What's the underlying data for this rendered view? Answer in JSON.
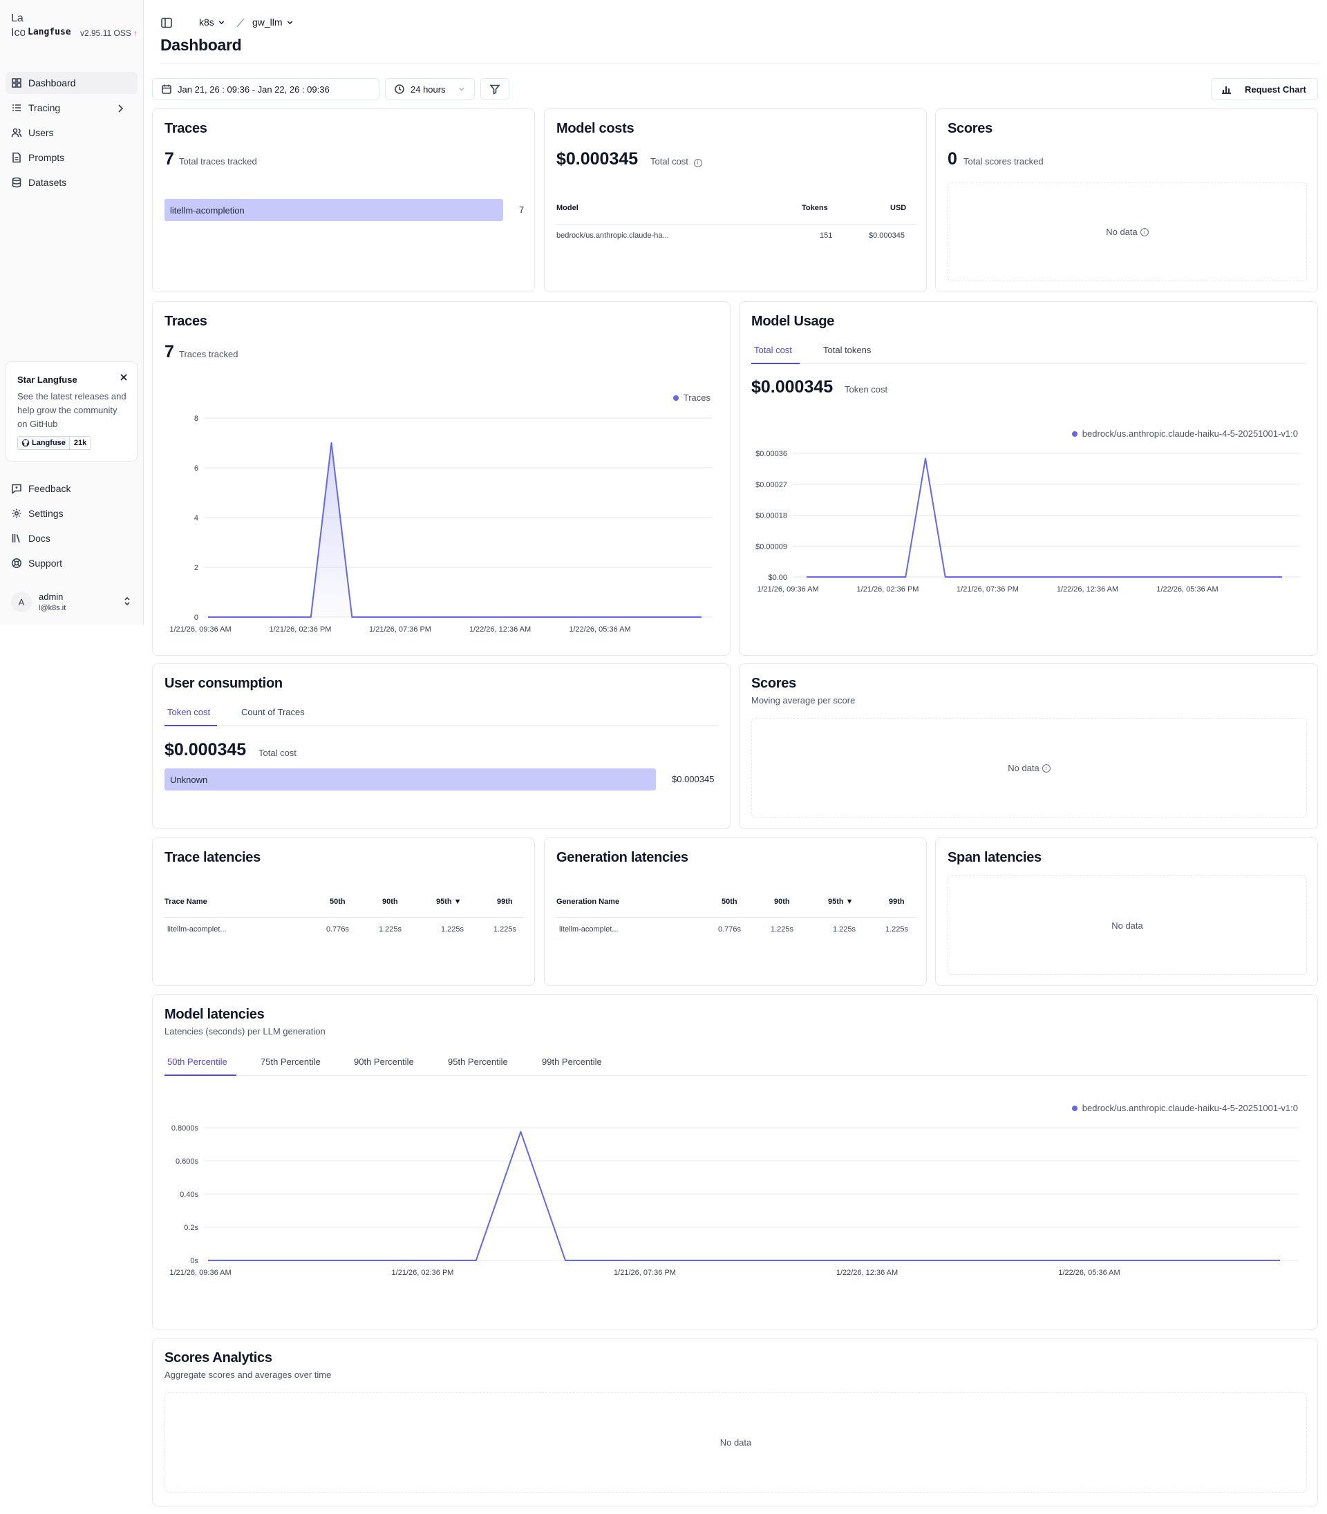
{
  "sidebar": {
    "logo_alt": "La Ico",
    "brand": "Langfuse",
    "version": "v2.95.11 OSS",
    "version_arrow": "↑",
    "nav": [
      {
        "label": "Dashboard"
      },
      {
        "label": "Tracing"
      },
      {
        "label": "Users"
      },
      {
        "label": "Prompts"
      },
      {
        "label": "Datasets"
      }
    ],
    "star": {
      "title": "Star Langfuse",
      "description": "See the latest releases and help grow the community on GitHub",
      "badge_label": "Langfuse",
      "badge_count": "21k"
    },
    "bottom_nav": [
      {
        "label": "Feedback"
      },
      {
        "label": "Settings"
      },
      {
        "label": "Docs"
      },
      {
        "label": "Support"
      }
    ],
    "user": {
      "initial": "A",
      "name": "admin",
      "email": "l@k8s.it"
    }
  },
  "header": {
    "breadcrumb": [
      "k8s",
      "gw_llm"
    ],
    "title": "Dashboard",
    "date_range": "Jan 21, 26 : 09:36 - Jan 22, 26 : 09:36",
    "interval": "24 hours",
    "request_chart": "Request Chart"
  },
  "traces_card": {
    "title": "Traces",
    "count": "7",
    "subtitle": "Total traces tracked",
    "rows": [
      {
        "name": "litellm-acompletion",
        "value": "7"
      }
    ]
  },
  "model_costs": {
    "title": "Model costs",
    "total": "$0.000345",
    "subtitle": "Total cost",
    "columns": [
      "Model",
      "Tokens",
      "USD"
    ],
    "rows": [
      {
        "model": "bedrock/us.anthropic.claude-ha...",
        "tokens": "151",
        "usd": "$0.000345"
      }
    ]
  },
  "scores_card": {
    "title": "Scores",
    "count": "0",
    "subtitle": "Total scores tracked",
    "empty": "No data"
  },
  "traces_chart": {
    "title": "Traces",
    "count": "7",
    "subtitle": "Traces tracked",
    "legend": "Traces"
  },
  "model_usage": {
    "title": "Model Usage",
    "tabs": [
      "Total cost",
      "Total tokens"
    ],
    "total": "$0.000345",
    "subtitle": "Token cost",
    "legend": "bedrock/us.anthropic.claude-haiku-4-5-20251001-v1:0"
  },
  "user_consumption": {
    "title": "User consumption",
    "tabs": [
      "Token cost",
      "Count of Traces"
    ],
    "total": "$0.000345",
    "subtitle": "Total cost",
    "rows": [
      {
        "name": "Unknown",
        "value": "$0.000345"
      }
    ]
  },
  "scores_avg": {
    "title": "Scores",
    "subtitle": "Moving average per score",
    "empty": "No data"
  },
  "trace_latencies": {
    "title": "Trace latencies",
    "columns": [
      "Trace Name",
      "50th",
      "90th",
      "95th ▼",
      "99th"
    ],
    "rows": [
      [
        "litellm-acomplet...",
        "0.776s",
        "1.225s",
        "1.225s",
        "1.225s"
      ]
    ]
  },
  "generation_latencies": {
    "title": "Generation latencies",
    "columns": [
      "Generation Name",
      "50th",
      "90th",
      "95th ▼",
      "99th"
    ],
    "rows": [
      [
        "litellm-acomplet...",
        "0.776s",
        "1.225s",
        "1.225s",
        "1.225s"
      ]
    ]
  },
  "span_latencies": {
    "title": "Span latencies",
    "empty": "No data"
  },
  "model_latencies": {
    "title": "Model latencies",
    "subtitle": "Latencies (seconds) per LLM generation",
    "tabs": [
      "50th Percentile",
      "75th Percentile",
      "90th Percentile",
      "95th Percentile",
      "99th Percentile"
    ],
    "legend": "bedrock/us.anthropic.claude-haiku-4-5-20251001-v1:0"
  },
  "scores_analytics": {
    "title": "Scores Analytics",
    "subtitle": "Aggregate scores and averages over time",
    "empty": "No data"
  },
  "colors": {
    "accent": "#4f46e5",
    "series": "#6366f1",
    "bar": "#c7c9fa"
  },
  "chart_data": [
    {
      "type": "area",
      "series": [
        {
          "name": "Traces",
          "values": [
            0,
            0,
            0,
            0,
            0,
            0,
            7,
            0,
            0,
            0,
            0,
            0,
            0,
            0,
            0,
            0,
            0,
            0,
            0,
            0,
            0,
            0,
            0,
            0,
            0
          ]
        }
      ],
      "x_ticks": [
        "1/21/26, 09:36 AM",
        "1/21/26, 02:36 PM",
        "1/21/26, 07:36 PM",
        "1/22/26, 12:36 AM",
        "1/22/26, 05:36 AM"
      ],
      "y_ticks": [
        "0",
        "2",
        "4",
        "6",
        "8"
      ],
      "ylim": [
        0,
        8
      ]
    },
    {
      "type": "line",
      "series": [
        {
          "name": "bedrock/us.anthropic.claude-haiku-4-5-20251001-v1:0",
          "values": [
            0,
            0,
            0,
            0,
            0,
            0,
            0.000345,
            0,
            0,
            0,
            0,
            0,
            0,
            0,
            0,
            0,
            0,
            0,
            0,
            0,
            0,
            0,
            0,
            0,
            0
          ]
        }
      ],
      "x_ticks": [
        "1/21/26, 09:36 AM",
        "1/21/26, 02:36 PM",
        "1/21/26, 07:36 PM",
        "1/22/26, 12:36 AM",
        "1/22/26, 05:36 AM"
      ],
      "y_ticks": [
        "$0.00",
        "$0.00009",
        "$0.00018",
        "$0.00027",
        "$0.00036"
      ],
      "ylim": [
        0,
        0.00036
      ]
    },
    {
      "type": "line",
      "series": [
        {
          "name": "bedrock/us.anthropic.claude-haiku-4-5-20251001-v1:0",
          "values": [
            0,
            0,
            0,
            0,
            0,
            0,
            0,
            0.776,
            0,
            0,
            0,
            0,
            0,
            0,
            0,
            0,
            0,
            0,
            0,
            0,
            0,
            0,
            0,
            0,
            0
          ]
        }
      ],
      "x_ticks": [
        "1/21/26, 09:36 AM",
        "1/21/26, 02:36 PM",
        "1/21/26, 07:36 PM",
        "1/22/26, 12:36 AM",
        "1/22/26, 05:36 AM"
      ],
      "y_ticks": [
        "0s",
        "0.2s",
        "0.40s",
        "0.600s",
        "0.8000s"
      ],
      "ylim": [
        0,
        0.8
      ]
    }
  ]
}
